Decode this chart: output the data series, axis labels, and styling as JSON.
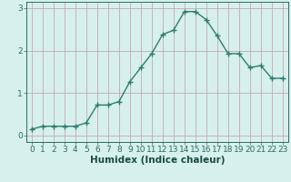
{
  "x": [
    0,
    1,
    2,
    3,
    4,
    5,
    6,
    7,
    8,
    9,
    10,
    11,
    12,
    13,
    14,
    15,
    16,
    17,
    18,
    19,
    20,
    21,
    22,
    23
  ],
  "y": [
    0.15,
    0.22,
    0.22,
    0.22,
    0.22,
    0.3,
    0.72,
    0.72,
    0.8,
    1.27,
    1.6,
    1.93,
    2.38,
    2.48,
    2.92,
    2.92,
    2.73,
    2.35,
    1.93,
    1.93,
    1.6,
    1.65,
    1.35,
    1.35
  ],
  "line_color": "#2e7d6e",
  "marker": "+",
  "marker_size": 4,
  "line_width": 1.0,
  "bg_color": "#d6f0ee",
  "grid_color": "#c9a8b0",
  "xlabel": "Humidex (Indice chaleur)",
  "xlim": [
    -0.5,
    23.5
  ],
  "ylim": [
    -0.15,
    3.15
  ],
  "yticks": [
    0,
    1,
    2,
    3
  ],
  "xticks": [
    0,
    1,
    2,
    3,
    4,
    5,
    6,
    7,
    8,
    9,
    10,
    11,
    12,
    13,
    14,
    15,
    16,
    17,
    18,
    19,
    20,
    21,
    22,
    23
  ],
  "tick_color": "#2e6b60",
  "label_color": "#1a4a42",
  "font_size": 6.5,
  "xlabel_fontsize": 7.5
}
